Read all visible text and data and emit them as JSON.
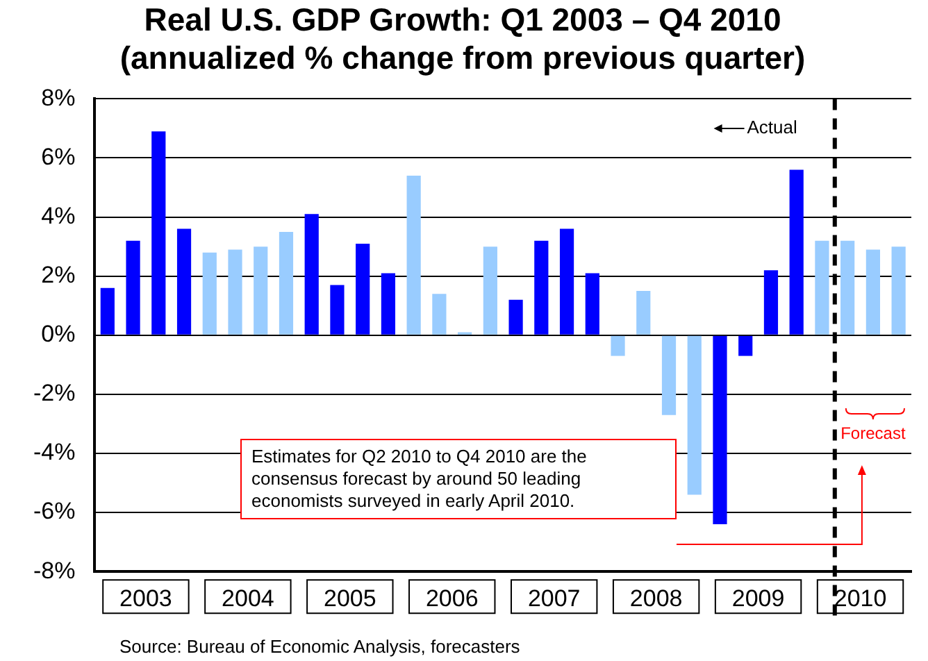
{
  "chart_data": {
    "type": "bar",
    "title": "Real U.S. GDP Growth: Q1 2003 – Q4 2010",
    "subtitle": "(annualized % change from previous quarter)",
    "x": [
      2003,
      2003.25,
      2003.5,
      2003.75,
      2004,
      2004.25,
      2004.5,
      2004.75,
      2005,
      2005.25,
      2005.5,
      2005.75,
      2006,
      2006.25,
      2006.5,
      2006.75,
      2007,
      2007.25,
      2007.5,
      2007.75,
      2008,
      2008.25,
      2008.5,
      2008.75,
      2009,
      2009.25,
      2009.5,
      2009.75,
      2010,
      2010.25,
      2010.5,
      2010.75
    ],
    "values": [
      1.6,
      3.2,
      6.9,
      3.6,
      2.8,
      2.9,
      3.0,
      3.5,
      4.1,
      1.7,
      3.1,
      2.1,
      5.4,
      1.4,
      0.1,
      3.0,
      1.2,
      3.2,
      3.6,
      2.1,
      -0.7,
      1.5,
      -2.7,
      -5.4,
      -6.4,
      -0.7,
      2.2,
      5.6,
      3.2,
      3.2,
      2.9,
      3.0
    ],
    "colors": [
      "#0000ff",
      "#0000ff",
      "#0000ff",
      "#0000ff",
      "#99ccff",
      "#99ccff",
      "#99ccff",
      "#99ccff",
      "#0000ff",
      "#0000ff",
      "#0000ff",
      "#0000ff",
      "#99ccff",
      "#99ccff",
      "#99ccff",
      "#99ccff",
      "#0000ff",
      "#0000ff",
      "#0000ff",
      "#0000ff",
      "#99ccff",
      "#99ccff",
      "#99ccff",
      "#99ccff",
      "#0000ff",
      "#0000ff",
      "#0000ff",
      "#0000ff",
      "#99ccff",
      "#99ccff",
      "#99ccff",
      "#99ccff"
    ],
    "xlim": [
      2002.875,
      2010.875
    ],
    "xticks": [
      {
        "value": 2003.375,
        "label": "2003"
      },
      {
        "value": 2004.375,
        "label": "2004"
      },
      {
        "value": 2005.375,
        "label": "2005"
      },
      {
        "value": 2006.375,
        "label": "2006"
      },
      {
        "value": 2007.375,
        "label": "2007"
      },
      {
        "value": 2008.375,
        "label": "2008"
      },
      {
        "value": 2009.375,
        "label": "2009"
      },
      {
        "value": 2010.375,
        "label": "2010"
      }
    ],
    "ylim": [
      -8,
      8
    ],
    "yticks": [
      {
        "value": -8,
        "label": "-8%"
      },
      {
        "value": -6,
        "label": "-6%"
      },
      {
        "value": -4,
        "label": "-4%"
      },
      {
        "value": -2,
        "label": "-2%"
      },
      {
        "value": 0,
        "label": "0%"
      },
      {
        "value": 2,
        "label": "2%"
      },
      {
        "value": 4,
        "label": "4%"
      },
      {
        "value": 6,
        "label": "6%"
      },
      {
        "value": 8,
        "label": "8%"
      }
    ],
    "grid": "y",
    "legend": false,
    "ref_lines": [
      {
        "axis": "x",
        "value": 2010.125,
        "line_style": "dashed",
        "color": "#000000"
      }
    ],
    "annotations": [
      {
        "text": "Actual",
        "x": 2010.125,
        "y": 7.0
      },
      "Forecast",
      "Estimates for Q2 2010 to Q4 2010 are the consensus forecast by around 50 leading economists surveyed in early April 2010.",
      "Source: Bureau of Economic Analysis, forecasters"
    ]
  }
}
